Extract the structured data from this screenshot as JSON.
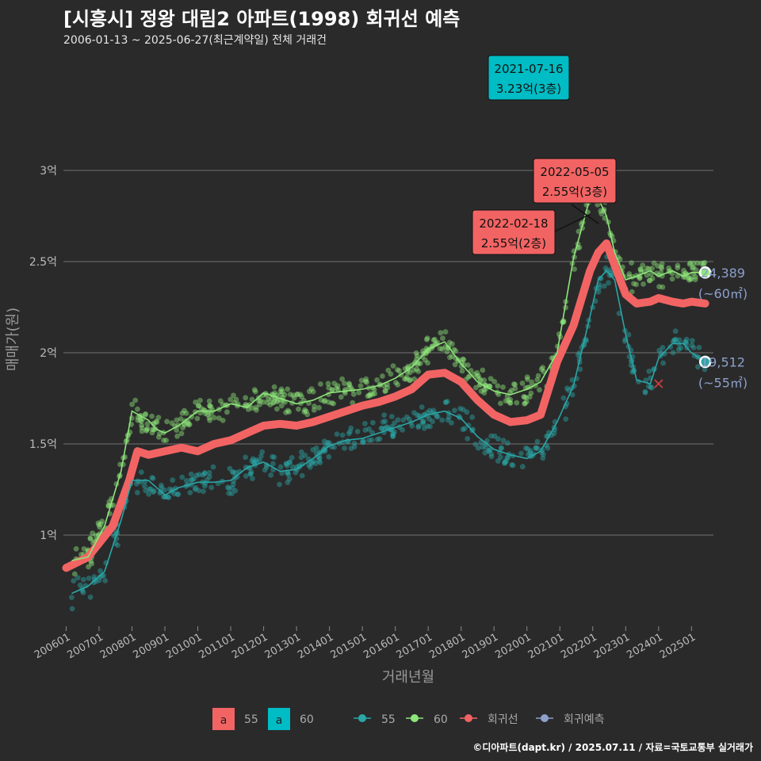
{
  "header": {
    "title": "[시흥시] 정왕 대림2 아파트(1998) 회귀선 예측",
    "subtitle": "2006-01-13 ~ 2025-06-27(최근계약일) 전체 거래건"
  },
  "footer": {
    "credit": "©디아파트(dapt.kr) / 2025.07.11 / 자료=국토교통부 실거래가"
  },
  "colors": {
    "background": "#2a2a2b",
    "grid": "#5a5a5a",
    "series_55": "#2aa6a6",
    "series_60": "#8ee67a",
    "regression": "#f26463",
    "forecast": "#8da0cb",
    "label_teal": "#00bcc4",
    "label_red": "#f26463"
  },
  "chart_data": {
    "type": "scatter",
    "xlabel": "거래년월",
    "ylabel": "매매가(원)",
    "x_range": [
      "2006-01",
      "2025-09"
    ],
    "ylim": [
      0.5,
      3.5
    ],
    "y_ticks": [
      {
        "v": 1.0,
        "label": "1억"
      },
      {
        "v": 1.5,
        "label": "1.5억"
      },
      {
        "v": 2.0,
        "label": "2억"
      },
      {
        "v": 2.5,
        "label": "2.5억"
      },
      {
        "v": 3.0,
        "label": "3억"
      }
    ],
    "x_ticks": [
      "200601",
      "200701",
      "200801",
      "200901",
      "201001",
      "201101",
      "201201",
      "201301",
      "201401",
      "201501",
      "201601",
      "201701",
      "201801",
      "201901",
      "202001",
      "202101",
      "202201",
      "202301",
      "202401",
      "202501"
    ],
    "grid": true,
    "legend_position": "bottom",
    "series": [
      {
        "name": "55",
        "moving_average": [
          [
            "2006-03",
            0.68
          ],
          [
            "2006-09",
            0.72
          ],
          [
            "2007-03",
            0.8
          ],
          [
            "2007-09",
            1.08
          ],
          [
            "2008-01",
            1.3
          ],
          [
            "2008-07",
            1.3
          ],
          [
            "2008-10",
            1.26
          ],
          [
            "2009-01",
            1.22
          ],
          [
            "2009-06",
            1.26
          ],
          [
            "2010-01",
            1.29
          ],
          [
            "2010-07",
            1.29
          ],
          [
            "2011-01",
            1.3
          ],
          [
            "2011-07",
            1.37
          ],
          [
            "2012-01",
            1.4
          ],
          [
            "2012-07",
            1.35
          ],
          [
            "2013-01",
            1.36
          ],
          [
            "2013-07",
            1.42
          ],
          [
            "2014-01",
            1.49
          ],
          [
            "2014-07",
            1.52
          ],
          [
            "2015-01",
            1.53
          ],
          [
            "2015-07",
            1.56
          ],
          [
            "2016-01",
            1.59
          ],
          [
            "2016-07",
            1.62
          ],
          [
            "2017-01",
            1.66
          ],
          [
            "2017-07",
            1.68
          ],
          [
            "2018-01",
            1.64
          ],
          [
            "2018-07",
            1.54
          ],
          [
            "2019-01",
            1.47
          ],
          [
            "2019-07",
            1.44
          ],
          [
            "2020-01",
            1.42
          ],
          [
            "2020-06",
            1.46
          ],
          [
            "2020-12",
            1.62
          ],
          [
            "2021-06",
            1.82
          ],
          [
            "2021-12",
            2.2
          ],
          [
            "2022-03",
            2.4
          ],
          [
            "2022-06",
            2.45
          ],
          [
            "2022-09",
            2.4
          ],
          [
            "2023-01",
            2.1
          ],
          [
            "2023-05",
            1.85
          ],
          [
            "2023-10",
            1.83
          ],
          [
            "2024-01",
            1.97
          ],
          [
            "2024-06",
            2.05
          ],
          [
            "2024-10",
            2.05
          ],
          [
            "2025-01",
            2.0
          ],
          [
            "2025-06",
            1.95
          ]
        ],
        "last_point": {
          "x": "2025-06",
          "y": 1.95,
          "label": "19,512",
          "area": "(~55㎡)"
        }
      },
      {
        "name": "60",
        "moving_average": [
          [
            "2006-03",
            0.86
          ],
          [
            "2006-09",
            0.88
          ],
          [
            "2007-03",
            1.05
          ],
          [
            "2007-09",
            1.35
          ],
          [
            "2008-01",
            1.68
          ],
          [
            "2008-07",
            1.63
          ],
          [
            "2008-10",
            1.58
          ],
          [
            "2009-01",
            1.56
          ],
          [
            "2009-06",
            1.6
          ],
          [
            "2010-01",
            1.68
          ],
          [
            "2010-07",
            1.68
          ],
          [
            "2011-01",
            1.72
          ],
          [
            "2011-07",
            1.7
          ],
          [
            "2012-01",
            1.78
          ],
          [
            "2012-07",
            1.75
          ],
          [
            "2013-01",
            1.72
          ],
          [
            "2013-07",
            1.74
          ],
          [
            "2014-01",
            1.78
          ],
          [
            "2014-07",
            1.79
          ],
          [
            "2015-01",
            1.8
          ],
          [
            "2015-07",
            1.82
          ],
          [
            "2016-01",
            1.86
          ],
          [
            "2016-07",
            1.92
          ],
          [
            "2017-01",
            2.02
          ],
          [
            "2017-07",
            2.06
          ],
          [
            "2018-01",
            1.94
          ],
          [
            "2018-07",
            1.84
          ],
          [
            "2019-01",
            1.79
          ],
          [
            "2019-07",
            1.77
          ],
          [
            "2020-01",
            1.8
          ],
          [
            "2020-06",
            1.84
          ],
          [
            "2020-12",
            2.0
          ],
          [
            "2021-06",
            2.52
          ],
          [
            "2021-12",
            2.85
          ],
          [
            "2022-02",
            2.88
          ],
          [
            "2022-06",
            2.75
          ],
          [
            "2022-09",
            2.55
          ],
          [
            "2023-01",
            2.4
          ],
          [
            "2023-05",
            2.42
          ],
          [
            "2023-10",
            2.45
          ],
          [
            "2024-01",
            2.42
          ],
          [
            "2024-06",
            2.45
          ],
          [
            "2024-10",
            2.42
          ],
          [
            "2025-01",
            2.44
          ],
          [
            "2025-06",
            2.44
          ]
        ],
        "last_point": {
          "x": "2025-06",
          "y": 2.44,
          "label": "24,389",
          "area": "(~60㎡)"
        }
      }
    ],
    "regression": [
      [
        "2006-01",
        0.82
      ],
      [
        "2006-09",
        0.88
      ],
      [
        "2007-06",
        1.05
      ],
      [
        "2007-12",
        1.3
      ],
      [
        "2008-03",
        1.46
      ],
      [
        "2008-07",
        1.44
      ],
      [
        "2009-01",
        1.46
      ],
      [
        "2009-07",
        1.48
      ],
      [
        "2010-01",
        1.46
      ],
      [
        "2010-07",
        1.5
      ],
      [
        "2011-01",
        1.52
      ],
      [
        "2011-07",
        1.56
      ],
      [
        "2012-01",
        1.6
      ],
      [
        "2012-07",
        1.61
      ],
      [
        "2013-01",
        1.6
      ],
      [
        "2013-07",
        1.62
      ],
      [
        "2014-01",
        1.65
      ],
      [
        "2014-07",
        1.68
      ],
      [
        "2015-01",
        1.71
      ],
      [
        "2015-07",
        1.73
      ],
      [
        "2016-01",
        1.76
      ],
      [
        "2016-07",
        1.8
      ],
      [
        "2017-01",
        1.88
      ],
      [
        "2017-07",
        1.89
      ],
      [
        "2018-01",
        1.84
      ],
      [
        "2018-07",
        1.74
      ],
      [
        "2019-01",
        1.66
      ],
      [
        "2019-07",
        1.62
      ],
      [
        "2020-01",
        1.63
      ],
      [
        "2020-06",
        1.66
      ],
      [
        "2020-12",
        1.95
      ],
      [
        "2021-06",
        2.15
      ],
      [
        "2021-12",
        2.45
      ],
      [
        "2022-03",
        2.55
      ],
      [
        "2022-06",
        2.6
      ],
      [
        "2022-09",
        2.48
      ],
      [
        "2023-01",
        2.32
      ],
      [
        "2023-05",
        2.27
      ],
      [
        "2023-10",
        2.28
      ],
      [
        "2024-01",
        2.3
      ],
      [
        "2024-06",
        2.28
      ],
      [
        "2024-10",
        2.27
      ],
      [
        "2025-01",
        2.28
      ],
      [
        "2025-06",
        2.27
      ]
    ],
    "forecast_marker": {
      "x": "2024-01",
      "y": 1.83
    },
    "annotations": [
      {
        "date": "2021-07-16",
        "price": "3.23억(3층)",
        "x": "2021-07",
        "y": 3.23,
        "style": "teal"
      },
      {
        "date": "2022-05-05",
        "price": "2.55억(3층)",
        "x": "2022-05",
        "y": 2.55,
        "style": "red"
      },
      {
        "date": "2022-02-18",
        "price": "2.55억(2층)",
        "x": "2022-02",
        "y": 2.55,
        "style": "red"
      }
    ],
    "legend": {
      "fill_items": [
        {
          "key": "a",
          "label": "55",
          "color": "#f26463"
        },
        {
          "key": "a",
          "label": "60",
          "color": "#00bcc4"
        }
      ],
      "line_items": [
        {
          "label": "55",
          "color": "#2aa6a6"
        },
        {
          "label": "60",
          "color": "#8ee67a"
        },
        {
          "label": "회귀선",
          "color": "#f26463"
        },
        {
          "label": "회귀예측",
          "color": "#8da0cb"
        }
      ]
    }
  }
}
